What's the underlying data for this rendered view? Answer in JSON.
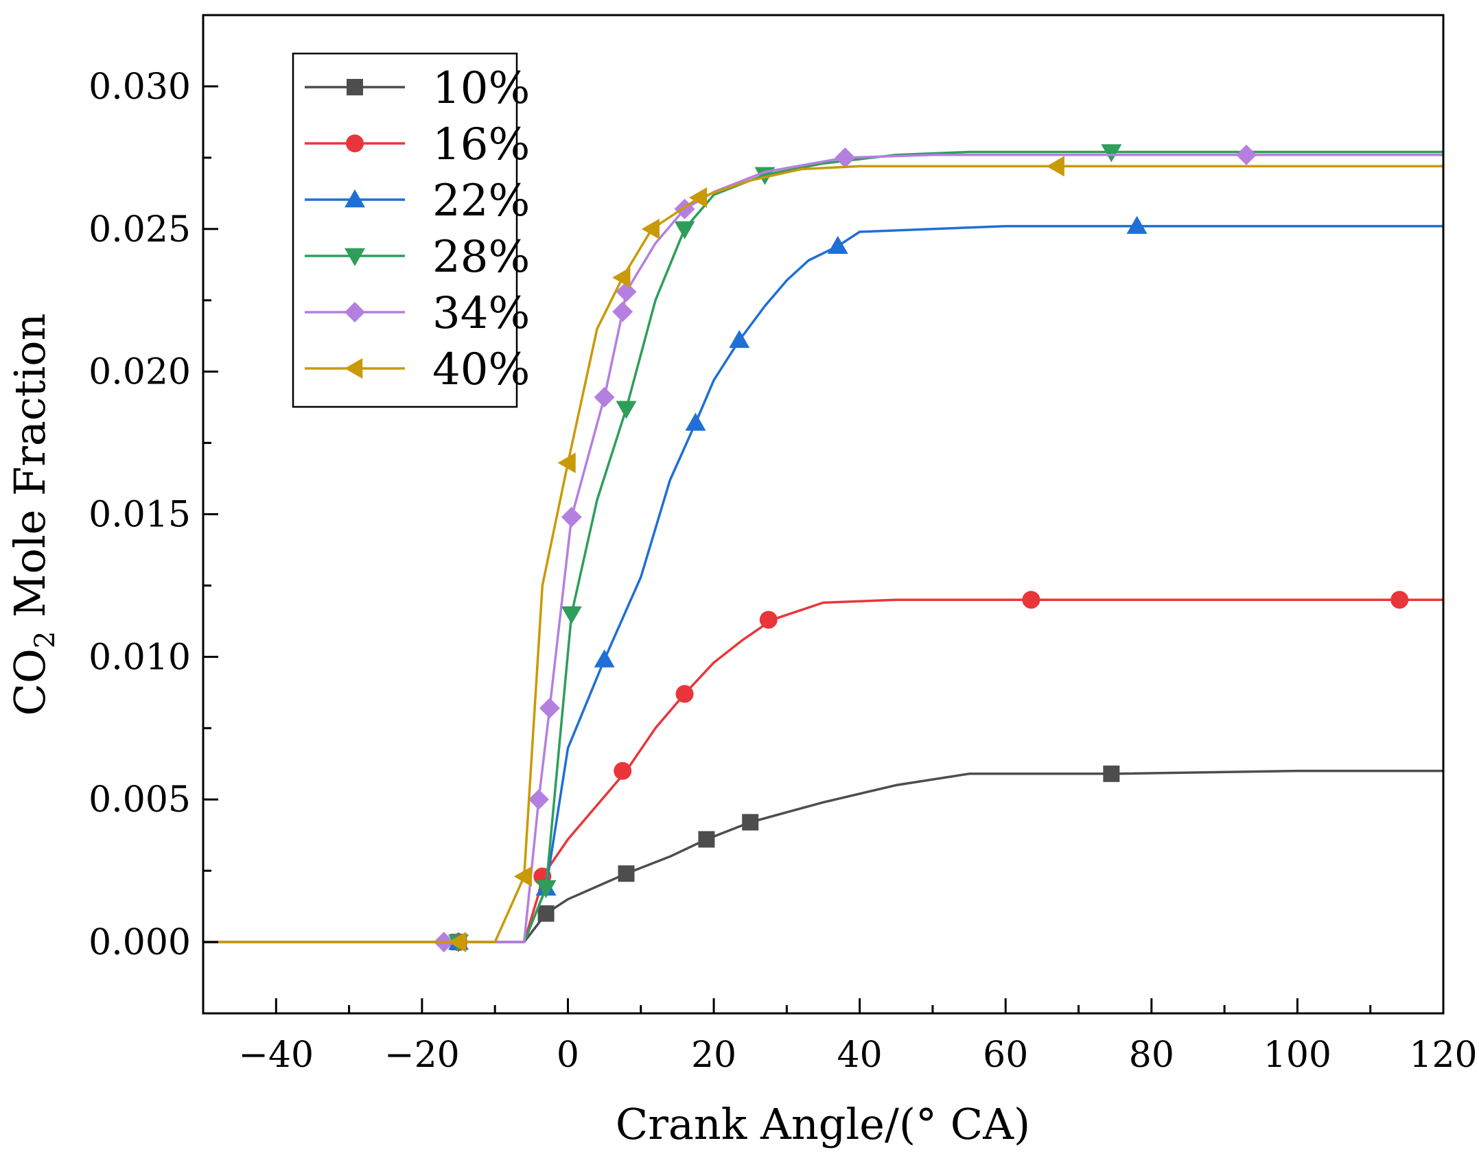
{
  "chart_data": {
    "type": "line",
    "title": "",
    "xlabel": "Crank Angle/(° CA)",
    "ylabel_main": "CO",
    "ylabel_sub": "2",
    "ylabel_rest": " Mole Fraction",
    "xlim": [
      -50,
      120
    ],
    "ylim": [
      -0.0025,
      0.0325
    ],
    "xticks": [
      -40,
      -20,
      0,
      20,
      40,
      60,
      80,
      100,
      120
    ],
    "xtick_labels": [
      "−40",
      "−20",
      "0",
      "20",
      "40",
      "60",
      "80",
      "100",
      "120"
    ],
    "yticks": [
      0,
      0.005,
      0.01,
      0.015,
      0.02,
      0.025,
      0.03
    ],
    "ytick_labels": [
      "0.000",
      "0.005",
      "0.010",
      "0.015",
      "0.020",
      "0.025",
      "0.030"
    ],
    "grid": false,
    "legend_position": "top-left",
    "series": [
      {
        "name": "10%",
        "color": "#4d4d4d",
        "marker": "square",
        "x": [
          -50,
          -30,
          -15,
          -6,
          -3,
          0,
          8,
          14,
          19,
          25,
          35,
          45,
          55,
          65,
          75,
          100,
          120
        ],
        "y": [
          0,
          0,
          0,
          0,
          0.001,
          0.0015,
          0.0024,
          0.003,
          0.0036,
          0.0042,
          0.0049,
          0.0055,
          0.0059,
          0.0059,
          0.0059,
          0.006,
          0.006
        ],
        "marker_x": [
          -15,
          -3,
          8,
          19,
          25,
          74.5
        ],
        "marker_y": [
          0,
          0.001,
          0.0024,
          0.0036,
          0.0042,
          0.0059
        ]
      },
      {
        "name": "16%",
        "color": "#e8363b",
        "marker": "circle",
        "x": [
          -50,
          -30,
          -15,
          -6,
          -4,
          -3.5,
          0,
          4,
          8,
          12,
          16,
          20,
          24,
          28,
          35,
          45,
          63.5,
          80,
          114,
          120
        ],
        "y": [
          0,
          0,
          0,
          0,
          0.0017,
          0.0023,
          0.0036,
          0.0048,
          0.006,
          0.0075,
          0.0087,
          0.0098,
          0.0106,
          0.0113,
          0.0119,
          0.012,
          0.012,
          0.012,
          0.012,
          0.012
        ],
        "marker_x": [
          -15,
          -3.5,
          7.5,
          16,
          27.5,
          63.5,
          114
        ],
        "marker_y": [
          0,
          0.0023,
          0.006,
          0.0087,
          0.0113,
          0.012,
          0.012
        ]
      },
      {
        "name": "22%",
        "color": "#1f6fd6",
        "marker": "triangle-up",
        "x": [
          -50,
          -30,
          -15,
          -6,
          -3,
          0,
          5,
          10,
          14,
          17.5,
          20,
          23.5,
          27,
          30,
          33,
          37,
          40,
          50,
          60,
          78,
          100,
          120
        ],
        "y": [
          0,
          0,
          0,
          0,
          0.0019,
          0.0068,
          0.0099,
          0.0128,
          0.0162,
          0.0182,
          0.0197,
          0.0211,
          0.0223,
          0.0232,
          0.0239,
          0.0244,
          0.0249,
          0.025,
          0.0251,
          0.0251,
          0.0251,
          0.0251
        ],
        "marker_x": [
          -15,
          -3,
          5,
          17.5,
          23.5,
          37,
          78
        ],
        "marker_y": [
          0,
          0.0019,
          0.0099,
          0.0182,
          0.0211,
          0.0244,
          0.0251
        ]
      },
      {
        "name": "28%",
        "color": "#2e9e5a",
        "marker": "triangle-down",
        "x": [
          -50,
          -30,
          -15,
          -6,
          -3,
          0.5,
          4,
          8,
          12,
          16,
          20,
          27,
          35,
          45,
          55,
          74.5,
          100,
          120
        ],
        "y": [
          0,
          0,
          0,
          0,
          0.0019,
          0.0115,
          0.0155,
          0.0187,
          0.0225,
          0.025,
          0.0262,
          0.0269,
          0.0273,
          0.0276,
          0.0277,
          0.0277,
          0.0277,
          0.0277
        ],
        "marker_x": [
          -15,
          -3,
          0.5,
          8,
          16,
          27,
          74.5
        ],
        "marker_y": [
          0,
          0.0019,
          0.0115,
          0.0187,
          0.025,
          0.0269,
          0.0277
        ]
      },
      {
        "name": "34%",
        "color": "#b57fe0",
        "marker": "diamond",
        "x": [
          -50,
          -30,
          -17,
          -6,
          -4,
          -2.5,
          0.5,
          5,
          7.5,
          8,
          12,
          16,
          20,
          27,
          38,
          50,
          70,
          93,
          120
        ],
        "y": [
          0,
          0,
          0,
          0,
          0.005,
          0.0082,
          0.0149,
          0.0191,
          0.0221,
          0.0228,
          0.0245,
          0.0257,
          0.0263,
          0.027,
          0.0275,
          0.0276,
          0.0276,
          0.0276,
          0.0276
        ],
        "marker_x": [
          -17,
          -4,
          -2.5,
          0.5,
          5,
          7.5,
          8,
          16,
          38,
          93
        ],
        "marker_y": [
          0,
          0.005,
          0.0082,
          0.0149,
          0.0191,
          0.0221,
          0.0228,
          0.0257,
          0.0275,
          0.0276
        ]
      },
      {
        "name": "40%",
        "color": "#c99a06",
        "marker": "triangle-left",
        "x": [
          -50,
          -30,
          -15,
          -10,
          -6,
          -3.5,
          0,
          4,
          7.5,
          11.5,
          18,
          25,
          32,
          40,
          50,
          67,
          90,
          120
        ],
        "y": [
          0,
          0,
          0,
          0,
          0.0023,
          0.0125,
          0.0168,
          0.0215,
          0.0233,
          0.025,
          0.0261,
          0.0267,
          0.0271,
          0.0272,
          0.0272,
          0.0272,
          0.0272,
          0.0272
        ],
        "marker_x": [
          -15,
          -6,
          0,
          7.5,
          11.5,
          18,
          67
        ],
        "marker_y": [
          0,
          0.0023,
          0.0168,
          0.0233,
          0.025,
          0.0261,
          0.0272
        ]
      }
    ]
  }
}
